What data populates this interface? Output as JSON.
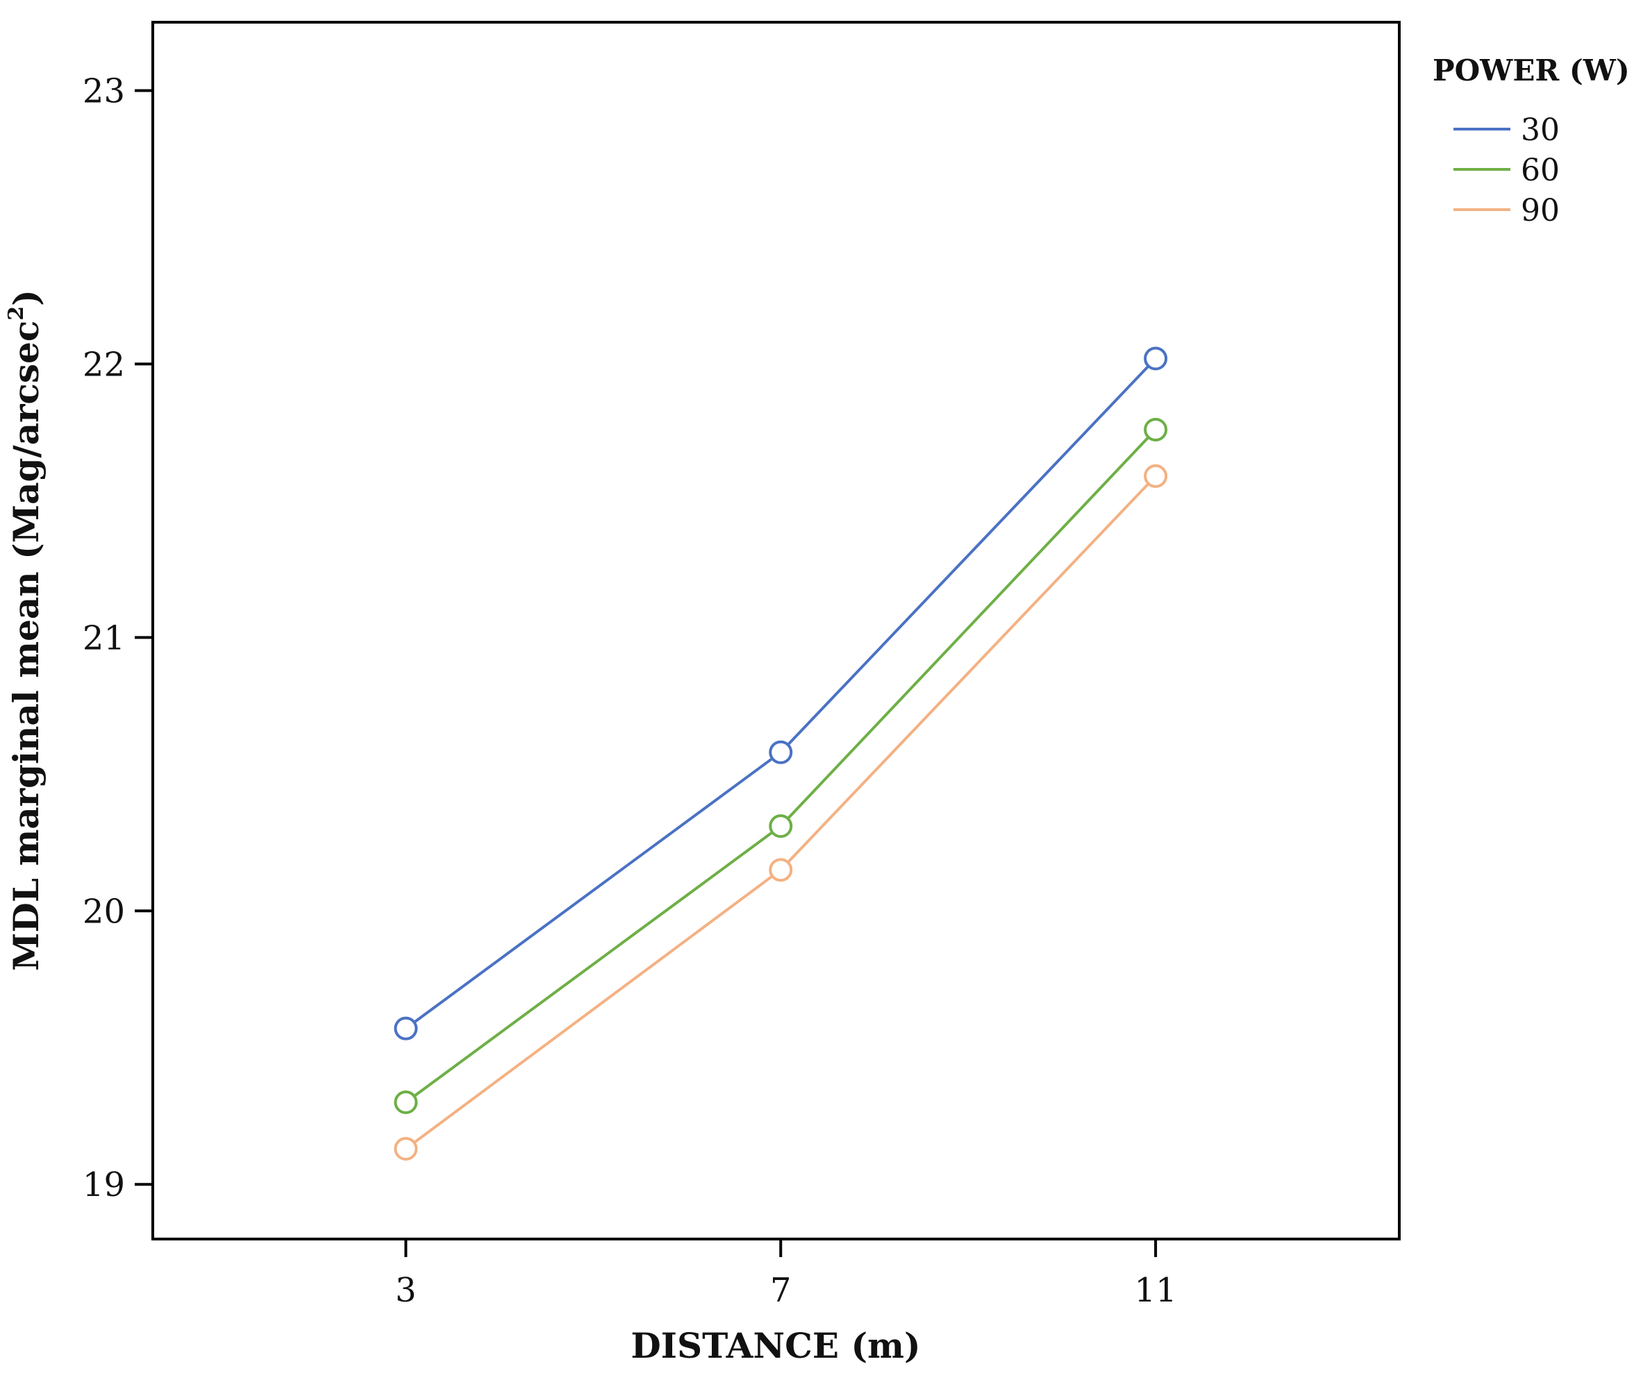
{
  "chart_data": {
    "type": "line",
    "title": "",
    "xlabel": "DISTANCE (m)",
    "ylabel_main": "MDL marginal mean (Mag/arcsec",
    "ylabel_sup": "2",
    "ylabel_close": ")",
    "x": [
      3,
      7,
      11
    ],
    "x_ticks": [
      "3",
      "7",
      "11"
    ],
    "xlim": [
      0.3,
      13.6
    ],
    "ylim": [
      18.8,
      23.25
    ],
    "y_ticks": [
      19,
      20,
      21,
      22,
      23
    ],
    "y_tick_labels": [
      "19",
      "20",
      "21",
      "22",
      "23"
    ],
    "grid": false,
    "legend": {
      "title": "POWER (W)",
      "placement": "outside-top-right"
    },
    "series": [
      {
        "name": "30",
        "values": [
          19.57,
          20.58,
          22.02
        ],
        "color": "#4A72C4"
      },
      {
        "name": "60",
        "values": [
          19.3,
          20.31,
          21.76
        ],
        "color": "#6EAF46"
      },
      {
        "name": "90",
        "values": [
          19.13,
          20.15,
          21.59
        ],
        "color": "#F4B183"
      }
    ]
  }
}
